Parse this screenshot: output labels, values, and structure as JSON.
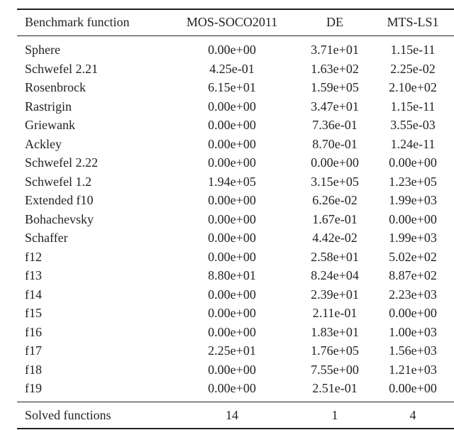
{
  "table": {
    "headers": [
      "Benchmark function",
      "MOS-SOCO2011",
      "DE",
      "MTS-LS1"
    ],
    "rows": [
      [
        "Sphere",
        "0.00e+00",
        "3.71e+01",
        "1.15e-11"
      ],
      [
        "Schwefel 2.21",
        "4.25e-01",
        "1.63e+02",
        "2.25e-02"
      ],
      [
        "Rosenbrock",
        "6.15e+01",
        "1.59e+05",
        "2.10e+02"
      ],
      [
        "Rastrigin",
        "0.00e+00",
        "3.47e+01",
        "1.15e-11"
      ],
      [
        "Griewank",
        "0.00e+00",
        "7.36e-01",
        "3.55e-03"
      ],
      [
        "Ackley",
        "0.00e+00",
        "8.70e-01",
        "1.24e-11"
      ],
      [
        "Schwefel 2.22",
        "0.00e+00",
        "0.00e+00",
        "0.00e+00"
      ],
      [
        "Schwefel 1.2",
        "1.94e+05",
        "3.15e+05",
        "1.23e+05"
      ],
      [
        "Extended f10",
        "0.00e+00",
        "6.26e-02",
        "1.99e+03"
      ],
      [
        "Bohachevsky",
        "0.00e+00",
        "1.67e-01",
        "0.00e+00"
      ],
      [
        "Schaffer",
        "0.00e+00",
        "4.42e-02",
        "1.99e+03"
      ],
      [
        "f12",
        "0.00e+00",
        "2.58e+01",
        "5.02e+02"
      ],
      [
        "f13",
        "8.80e+01",
        "8.24e+04",
        "8.87e+02"
      ],
      [
        "f14",
        "0.00e+00",
        "2.39e+01",
        "2.23e+03"
      ],
      [
        "f15",
        "0.00e+00",
        "2.11e-01",
        "0.00e+00"
      ],
      [
        "f16",
        "0.00e+00",
        "1.83e+01",
        "1.00e+03"
      ],
      [
        "f17",
        "2.25e+01",
        "1.76e+05",
        "1.56e+03"
      ],
      [
        "f18",
        "0.00e+00",
        "7.55e+00",
        "1.21e+03"
      ],
      [
        "f19",
        "0.00e+00",
        "2.51e-01",
        "0.00e+00"
      ]
    ],
    "footer": [
      "Solved functions",
      "14",
      "1",
      "4"
    ]
  }
}
